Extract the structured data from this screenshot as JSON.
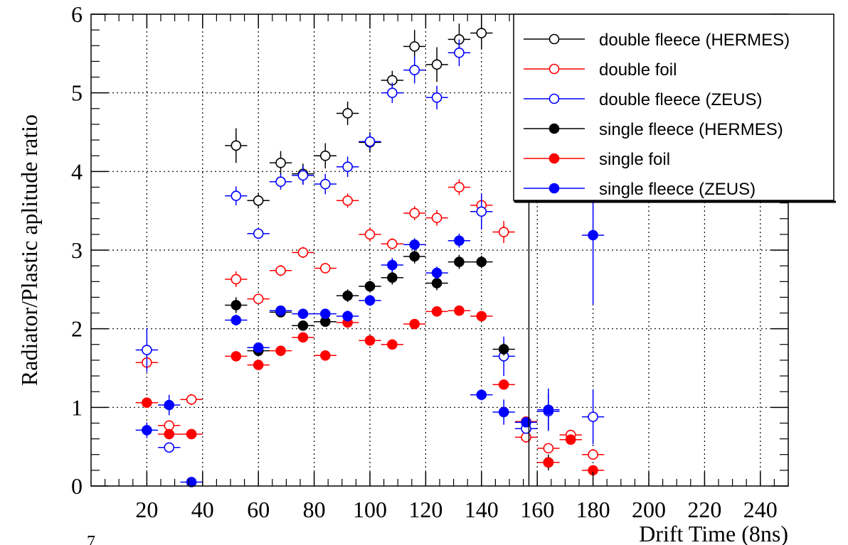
{
  "chart_data": {
    "type": "scatter",
    "xlabel": "Drift Time (8ns)",
    "ylabel": "Radiator/Plastic aplitude ratio",
    "xlim": [
      0,
      250
    ],
    "ylim": [
      0,
      6
    ],
    "grid": true,
    "legend_position": "top-right",
    "x_tick_labels": [
      "20",
      "40",
      "60",
      "80",
      "100",
      "120",
      "140",
      "160",
      "180",
      "200",
      "220",
      "240"
    ],
    "y_tick_labels": [
      "0",
      "1",
      "2",
      "3",
      "4",
      "5",
      "6"
    ],
    "extra_text": "7",
    "series": [
      {
        "name": "double fleece (HERMES)",
        "color": "#000000",
        "marker": "open-circle",
        "points": [
          {
            "x": 52,
            "y": 4.33,
            "err": 0.22
          },
          {
            "x": 60,
            "y": 3.63,
            "err": 0.1
          },
          {
            "x": 68,
            "y": 4.11,
            "err": 0.15
          },
          {
            "x": 76,
            "y": 3.97,
            "err": 0.13
          },
          {
            "x": 84,
            "y": 4.2,
            "err": 0.16
          },
          {
            "x": 92,
            "y": 4.74,
            "err": 0.15
          },
          {
            "x": 100,
            "y": 4.37,
            "err": 0.13
          },
          {
            "x": 108,
            "y": 5.16,
            "err": 0.12
          },
          {
            "x": 116,
            "y": 5.59,
            "err": 0.21
          },
          {
            "x": 124,
            "y": 5.36,
            "err": 0.22
          },
          {
            "x": 132,
            "y": 5.68,
            "err": 0.2
          },
          {
            "x": 140,
            "y": 5.76,
            "err": 0.2
          },
          {
            "x": 164,
            "y": 0.3,
            "err": 0.1
          }
        ]
      },
      {
        "name": "double foil",
        "color": "#ff0000",
        "marker": "open-circle",
        "points": [
          {
            "x": 20,
            "y": 1.57,
            "err": 0.08
          },
          {
            "x": 28,
            "y": 0.77,
            "err": 0.05
          },
          {
            "x": 36,
            "y": 1.1,
            "err": 0.07
          },
          {
            "x": 52,
            "y": 2.63,
            "err": 0.1
          },
          {
            "x": 60,
            "y": 2.38,
            "err": 0.06
          },
          {
            "x": 68,
            "y": 2.74,
            "err": 0.07
          },
          {
            "x": 76,
            "y": 2.97,
            "err": 0.07
          },
          {
            "x": 84,
            "y": 2.77,
            "err": 0.06
          },
          {
            "x": 92,
            "y": 3.63,
            "err": 0.09
          },
          {
            "x": 100,
            "y": 3.2,
            "err": 0.09
          },
          {
            "x": 108,
            "y": 3.08,
            "err": 0.07
          },
          {
            "x": 116,
            "y": 3.47,
            "err": 0.09
          },
          {
            "x": 124,
            "y": 3.41,
            "err": 0.1
          },
          {
            "x": 132,
            "y": 3.8,
            "err": 0.1
          },
          {
            "x": 140,
            "y": 3.57,
            "err": 0.1
          },
          {
            "x": 148,
            "y": 3.23,
            "err": 0.14
          },
          {
            "x": 156,
            "y": 0.62,
            "err": 0.07
          },
          {
            "x": 164,
            "y": 0.48,
            "err": 0.06
          },
          {
            "x": 172,
            "y": 0.65,
            "err": 0.05
          },
          {
            "x": 180,
            "y": 0.4,
            "err": 0.06
          }
        ]
      },
      {
        "name": "double fleece (ZEUS)",
        "color": "#0000ff",
        "marker": "open-circle",
        "points": [
          {
            "x": 20,
            "y": 1.73,
            "err": 0.28
          },
          {
            "x": 28,
            "y": 0.49,
            "err": 0.05
          },
          {
            "x": 52,
            "y": 3.69,
            "err": 0.12
          },
          {
            "x": 60,
            "y": 3.21,
            "err": 0.07
          },
          {
            "x": 68,
            "y": 3.87,
            "err": 0.1
          },
          {
            "x": 76,
            "y": 3.95,
            "err": 0.12
          },
          {
            "x": 84,
            "y": 3.84,
            "err": 0.13
          },
          {
            "x": 92,
            "y": 4.06,
            "err": 0.13
          },
          {
            "x": 100,
            "y": 4.38,
            "err": 0.1
          },
          {
            "x": 108,
            "y": 5.0,
            "err": 0.13
          },
          {
            "x": 116,
            "y": 5.29,
            "err": 0.17
          },
          {
            "x": 124,
            "y": 4.94,
            "err": 0.15
          },
          {
            "x": 132,
            "y": 5.51,
            "err": 0.17
          },
          {
            "x": 140,
            "y": 3.49,
            "err": 0.23
          },
          {
            "x": 148,
            "y": 1.65,
            "err": 0.25
          },
          {
            "x": 156,
            "y": 0.73,
            "err": 0.06
          },
          {
            "x": 164,
            "y": 0.95,
            "err": 0.23
          },
          {
            "x": 180,
            "y": 0.88,
            "err": 0.35
          }
        ]
      },
      {
        "name": "single fleece (HERMES)",
        "color": "#000000",
        "marker": "filled-circle",
        "points": [
          {
            "x": 52,
            "y": 2.3,
            "err": 0.1
          },
          {
            "x": 60,
            "y": 1.72,
            "err": 0.05
          },
          {
            "x": 68,
            "y": 2.21,
            "err": 0.06
          },
          {
            "x": 76,
            "y": 2.04,
            "err": 0.05
          },
          {
            "x": 84,
            "y": 2.09,
            "err": 0.05
          },
          {
            "x": 92,
            "y": 2.42,
            "err": 0.08
          },
          {
            "x": 100,
            "y": 2.54,
            "err": 0.07
          },
          {
            "x": 108,
            "y": 2.65,
            "err": 0.09
          },
          {
            "x": 116,
            "y": 2.92,
            "err": 0.09
          },
          {
            "x": 124,
            "y": 2.58,
            "err": 0.09
          },
          {
            "x": 132,
            "y": 2.85,
            "err": 0.09
          },
          {
            "x": 140,
            "y": 2.85,
            "err": 0.08
          },
          {
            "x": 148,
            "y": 1.74,
            "err": 0.08
          },
          {
            "x": 164,
            "y": 0.3,
            "err": 0.06
          }
        ]
      },
      {
        "name": "single foil",
        "color": "#ff0000",
        "marker": "filled-circle",
        "points": [
          {
            "x": 20,
            "y": 1.06,
            "err": 0.04
          },
          {
            "x": 28,
            "y": 0.66,
            "err": 0.04
          },
          {
            "x": 36,
            "y": 0.66,
            "err": 0.03
          },
          {
            "x": 52,
            "y": 1.65,
            "err": 0.04
          },
          {
            "x": 60,
            "y": 1.54,
            "err": 0.04
          },
          {
            "x": 68,
            "y": 1.72,
            "err": 0.04
          },
          {
            "x": 76,
            "y": 1.89,
            "err": 0.05
          },
          {
            "x": 84,
            "y": 1.66,
            "err": 0.03
          },
          {
            "x": 92,
            "y": 2.08,
            "err": 0.05
          },
          {
            "x": 100,
            "y": 1.85,
            "err": 0.04
          },
          {
            "x": 108,
            "y": 1.8,
            "err": 0.04
          },
          {
            "x": 116,
            "y": 2.06,
            "err": 0.04
          },
          {
            "x": 124,
            "y": 2.22,
            "err": 0.05
          },
          {
            "x": 132,
            "y": 2.23,
            "err": 0.05
          },
          {
            "x": 140,
            "y": 2.16,
            "err": 0.05
          },
          {
            "x": 148,
            "y": 1.29,
            "err": 0.06
          },
          {
            "x": 156,
            "y": 0.82,
            "err": 0.04
          },
          {
            "x": 164,
            "y": 0.3,
            "err": 0.04
          },
          {
            "x": 172,
            "y": 0.59,
            "err": 0.05
          },
          {
            "x": 180,
            "y": 0.2,
            "err": 0.03
          }
        ]
      },
      {
        "name": "single fleece (ZEUS)",
        "color": "#0000ff",
        "marker": "filled-circle",
        "points": [
          {
            "x": 20,
            "y": 0.71,
            "err": 0.1
          },
          {
            "x": 28,
            "y": 1.03,
            "err": 0.13
          },
          {
            "x": 36,
            "y": 0.05,
            "err": 0.02
          },
          {
            "x": 52,
            "y": 2.11,
            "err": 0.07
          },
          {
            "x": 60,
            "y": 1.76,
            "err": 0.05
          },
          {
            "x": 68,
            "y": 2.23,
            "err": 0.06
          },
          {
            "x": 76,
            "y": 2.19,
            "err": 0.06
          },
          {
            "x": 84,
            "y": 2.19,
            "err": 0.06
          },
          {
            "x": 92,
            "y": 2.16,
            "err": 0.07
          },
          {
            "x": 100,
            "y": 2.36,
            "err": 0.07
          },
          {
            "x": 108,
            "y": 2.81,
            "err": 0.09
          },
          {
            "x": 116,
            "y": 3.07,
            "err": 0.08
          },
          {
            "x": 124,
            "y": 2.71,
            "err": 0.08
          },
          {
            "x": 132,
            "y": 3.12,
            "err": 0.09
          },
          {
            "x": 140,
            "y": 1.16,
            "err": 0.07
          },
          {
            "x": 148,
            "y": 0.94,
            "err": 0.16
          },
          {
            "x": 156,
            "y": 0.81,
            "err": 0.06
          },
          {
            "x": 164,
            "y": 0.97,
            "err": 0.27
          },
          {
            "x": 180,
            "y": 3.19,
            "err": 0.88
          }
        ]
      }
    ]
  }
}
